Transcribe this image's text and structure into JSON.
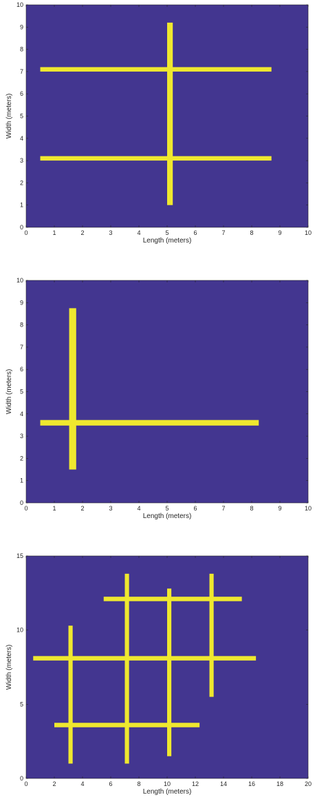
{
  "colors": {
    "background": "#433690",
    "bar": "#efe82f",
    "axis": "#262626"
  },
  "chart_data": [
    {
      "type": "heatmap",
      "title": "",
      "xlabel": "Length (meters)",
      "ylabel": "Width (meters)",
      "xlim": [
        0,
        10
      ],
      "ylim": [
        0,
        10
      ],
      "xticks": [
        0,
        1,
        2,
        3,
        4,
        5,
        6,
        7,
        8,
        9,
        10
      ],
      "yticks": [
        0,
        1,
        2,
        3,
        4,
        5,
        6,
        7,
        8,
        9,
        10
      ],
      "segments": [
        {
          "orientation": "horizontal",
          "from": 0.5,
          "to": 8.7,
          "at": 7.1,
          "width": 0.2
        },
        {
          "orientation": "horizontal",
          "from": 0.5,
          "to": 8.7,
          "at": 3.1,
          "width": 0.2
        },
        {
          "orientation": "vertical",
          "from": 1.0,
          "to": 9.2,
          "at": 5.1,
          "width": 0.2
        }
      ]
    },
    {
      "type": "heatmap",
      "title": "",
      "xlabel": "Length (meters)",
      "ylabel": "Width (meters)",
      "xlim": [
        0,
        10
      ],
      "ylim": [
        0,
        10
      ],
      "xticks": [
        0,
        1,
        2,
        3,
        4,
        5,
        6,
        7,
        8,
        9,
        10
      ],
      "yticks": [
        0,
        1,
        2,
        3,
        4,
        5,
        6,
        7,
        8,
        9,
        10
      ],
      "segments": [
        {
          "orientation": "vertical",
          "from": 1.5,
          "to": 8.75,
          "at": 1.65,
          "width": 0.25
        },
        {
          "orientation": "horizontal",
          "from": 0.5,
          "to": 8.25,
          "at": 3.6,
          "width": 0.25
        }
      ]
    },
    {
      "type": "heatmap",
      "title": "",
      "xlabel": "Length (meters)",
      "ylabel": "Width (meters)",
      "xlim": [
        0,
        20
      ],
      "ylim": [
        0,
        15
      ],
      "xticks": [
        0,
        2,
        4,
        6,
        8,
        10,
        12,
        14,
        16,
        18,
        20
      ],
      "yticks": [
        0,
        5,
        10,
        15
      ],
      "segments": [
        {
          "orientation": "horizontal",
          "from": 5.5,
          "to": 15.3,
          "at": 12.1,
          "width": 0.3
        },
        {
          "orientation": "horizontal",
          "from": 0.5,
          "to": 16.3,
          "at": 8.1,
          "width": 0.3
        },
        {
          "orientation": "horizontal",
          "from": 2.0,
          "to": 12.3,
          "at": 3.6,
          "width": 0.3
        },
        {
          "orientation": "vertical",
          "from": 1.0,
          "to": 10.3,
          "at": 3.15,
          "width": 0.3
        },
        {
          "orientation": "vertical",
          "from": 1.0,
          "to": 13.8,
          "at": 7.15,
          "width": 0.3
        },
        {
          "orientation": "vertical",
          "from": 1.5,
          "to": 12.8,
          "at": 10.15,
          "width": 0.3
        },
        {
          "orientation": "vertical",
          "from": 5.5,
          "to": 13.8,
          "at": 13.15,
          "width": 0.3
        }
      ]
    }
  ]
}
